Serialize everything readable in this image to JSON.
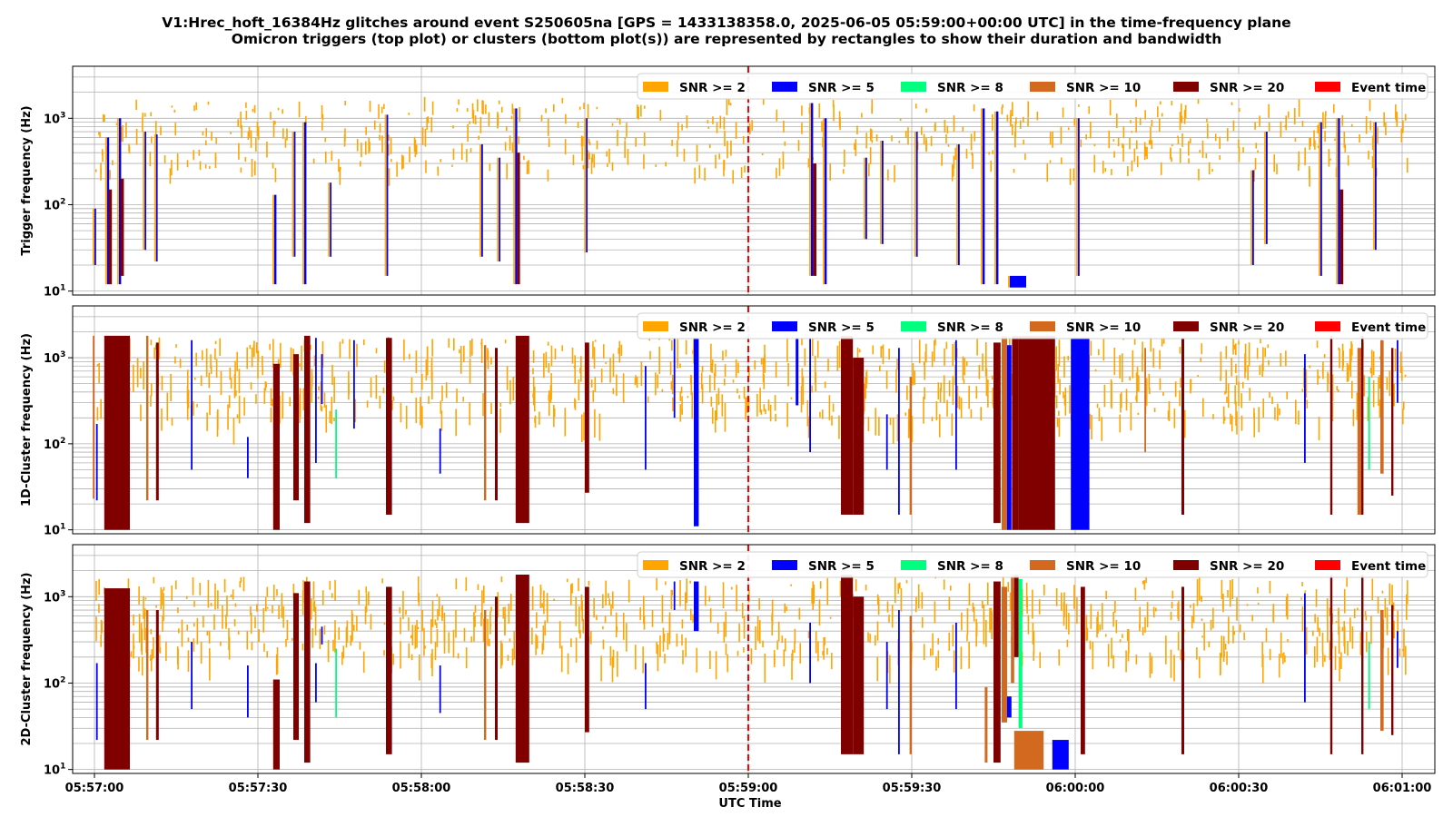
{
  "title": {
    "line1": "V1:Hrec_hoft_16384Hz glitches around event S250605na [GPS = 1433138358.0, 2025-06-05 05:59:00+00:00 UTC] in the time-frequency plane",
    "line2": "Omicron triggers (top plot) or clusters (bottom plot(s)) are represented by rectangles to show their duration and bandwidth"
  },
  "xlabel": "UTC Time",
  "xticks": [
    "05:57:00",
    "05:57:30",
    "05:58:00",
    "05:58:30",
    "05:59:00",
    "05:59:30",
    "06:00:00",
    "06:00:30",
    "06:01:00"
  ],
  "legend": [
    {
      "label": "SNR >= 2",
      "color": "#ffa500"
    },
    {
      "label": "SNR >= 5",
      "color": "#0000ff"
    },
    {
      "label": "SNR >= 8",
      "color": "#00ff7f"
    },
    {
      "label": "SNR >= 10",
      "color": "#d2691e"
    },
    {
      "label": "SNR >= 20",
      "color": "#800000"
    },
    {
      "label": "Event time",
      "color": "#ff0000"
    }
  ],
  "event_line_color": "#ff0000",
  "chart_data": [
    {
      "type": "bar",
      "panel": "triggers",
      "ylabel": "Trigger frequency (Hz)",
      "yscale": "log",
      "ylim": [
        9,
        4000
      ],
      "yticks": [
        "10^1",
        "10^2",
        "10^3"
      ],
      "xlim_seconds_from_05_57_00": [
        -4,
        246
      ],
      "event_time": "05:59:00",
      "grid": true,
      "legend_position": "top-right",
      "rects": [
        {
          "t0": 0.0,
          "t1": 0.3,
          "f0": 20,
          "f1": 90,
          "snr": 5
        },
        {
          "t0": 2.3,
          "t1": 2.7,
          "f0": 12,
          "f1": 600,
          "snr": 5
        },
        {
          "t0": 2.6,
          "t1": 3.2,
          "f0": 12,
          "f1": 150,
          "snr": 20
        },
        {
          "t0": 4.5,
          "t1": 4.9,
          "f0": 12,
          "f1": 1000,
          "snr": 5
        },
        {
          "t0": 4.8,
          "t1": 5.4,
          "f0": 15,
          "f1": 200,
          "snr": 20
        },
        {
          "t0": 9.2,
          "t1": 9.5,
          "f0": 30,
          "f1": 700,
          "snr": 5
        },
        {
          "t0": 11.3,
          "t1": 11.6,
          "f0": 22,
          "f1": 650,
          "snr": 5
        },
        {
          "t0": 33.0,
          "t1": 33.4,
          "f0": 12,
          "f1": 130,
          "snr": 5
        },
        {
          "t0": 36.6,
          "t1": 36.9,
          "f0": 25,
          "f1": 700,
          "snr": 5
        },
        {
          "t0": 38.5,
          "t1": 38.9,
          "f0": 12,
          "f1": 900,
          "snr": 5
        },
        {
          "t0": 43.2,
          "t1": 43.5,
          "f0": 25,
          "f1": 180,
          "snr": 5
        },
        {
          "t0": 53.6,
          "t1": 53.9,
          "f0": 15,
          "f1": 1100,
          "snr": 5
        },
        {
          "t0": 71.0,
          "t1": 71.3,
          "f0": 25,
          "f1": 500,
          "snr": 5
        },
        {
          "t0": 74.2,
          "t1": 74.5,
          "f0": 22,
          "f1": 350,
          "snr": 5
        },
        {
          "t0": 77.2,
          "t1": 77.6,
          "f0": 12,
          "f1": 1300,
          "snr": 5
        },
        {
          "t0": 77.6,
          "t1": 78.1,
          "f0": 12,
          "f1": 400,
          "snr": 20
        },
        {
          "t0": 90.2,
          "t1": 90.5,
          "f0": 28,
          "f1": 1000,
          "snr": 5
        },
        {
          "t0": 131.5,
          "t1": 131.9,
          "f0": 15,
          "f1": 1500,
          "snr": 5
        },
        {
          "t0": 131.9,
          "t1": 132.5,
          "f0": 15,
          "f1": 300,
          "snr": 20
        },
        {
          "t0": 134.0,
          "t1": 134.4,
          "f0": 12,
          "f1": 1000,
          "snr": 5
        },
        {
          "t0": 141.5,
          "t1": 141.8,
          "f0": 40,
          "f1": 350,
          "snr": 5
        },
        {
          "t0": 144.5,
          "t1": 144.8,
          "f0": 35,
          "f1": 550,
          "snr": 5
        },
        {
          "t0": 150.8,
          "t1": 151.1,
          "f0": 25,
          "f1": 700,
          "snr": 5
        },
        {
          "t0": 158.5,
          "t1": 158.8,
          "f0": 20,
          "f1": 500,
          "snr": 5
        },
        {
          "t0": 163.0,
          "t1": 163.4,
          "f0": 12,
          "f1": 1300,
          "snr": 5
        },
        {
          "t0": 165.5,
          "t1": 165.9,
          "f0": 12,
          "f1": 1200,
          "snr": 5
        },
        {
          "t0": 168.0,
          "t1": 171.0,
          "f0": 11,
          "f1": 15,
          "snr": 5
        },
        {
          "t0": 180.5,
          "t1": 180.8,
          "f0": 15,
          "f1": 1000,
          "snr": 5
        },
        {
          "t0": 212.5,
          "t1": 212.8,
          "f0": 20,
          "f1": 250,
          "snr": 5
        },
        {
          "t0": 215.0,
          "t1": 215.3,
          "f0": 35,
          "f1": 700,
          "snr": 5
        },
        {
          "t0": 225.0,
          "t1": 225.3,
          "f0": 15,
          "f1": 900,
          "snr": 5
        },
        {
          "t0": 228.2,
          "t1": 228.6,
          "f0": 12,
          "f1": 1000,
          "snr": 5
        },
        {
          "t0": 228.6,
          "t1": 229.2,
          "f0": 12,
          "f1": 150,
          "snr": 20
        },
        {
          "t0": 235.0,
          "t1": 235.3,
          "f0": 30,
          "f1": 900,
          "snr": 5
        }
      ]
    },
    {
      "type": "bar",
      "panel": "1d-clusters",
      "ylabel": "1D-Cluster frequency (Hz)",
      "yscale": "log",
      "ylim": [
        9,
        4000
      ],
      "yticks": [
        "10^1",
        "10^2",
        "10^3"
      ],
      "event_time": "05:59:00",
      "grid": true,
      "legend_position": "top-right",
      "rects": [
        {
          "t0": -0.3,
          "t1": 0.0,
          "f0": 23,
          "f1": 1800,
          "snr": 10
        },
        {
          "t0": 0.3,
          "t1": 0.6,
          "f0": 22,
          "f1": 170,
          "snr": 5
        },
        {
          "t0": 1.8,
          "t1": 6.5,
          "f0": 10,
          "f1": 1800,
          "snr": 20
        },
        {
          "t0": 9.5,
          "t1": 9.9,
          "f0": 22,
          "f1": 1800,
          "snr": 10
        },
        {
          "t0": 11.3,
          "t1": 11.8,
          "f0": 22,
          "f1": 1500,
          "snr": 20
        },
        {
          "t0": 17.7,
          "t1": 18.0,
          "f0": 50,
          "f1": 1600,
          "snr": 5
        },
        {
          "t0": 28.0,
          "t1": 28.3,
          "f0": 40,
          "f1": 120,
          "snr": 5
        },
        {
          "t0": 32.8,
          "t1": 34.0,
          "f0": 10,
          "f1": 850,
          "snr": 20
        },
        {
          "t0": 36.5,
          "t1": 37.5,
          "f0": 22,
          "f1": 1100,
          "snr": 20
        },
        {
          "t0": 38.5,
          "t1": 39.6,
          "f0": 12,
          "f1": 1800,
          "snr": 20
        },
        {
          "t0": 40.5,
          "t1": 40.8,
          "f0": 60,
          "f1": 1700,
          "snr": 5
        },
        {
          "t0": 41.6,
          "t1": 41.9,
          "f0": 290,
          "f1": 1100,
          "snr": 5
        },
        {
          "t0": 44.2,
          "t1": 44.5,
          "f0": 40,
          "f1": 250,
          "snr": 8
        },
        {
          "t0": 47.5,
          "t1": 47.8,
          "f0": 150,
          "f1": 1600,
          "snr": 5
        },
        {
          "t0": 53.5,
          "t1": 54.6,
          "f0": 15,
          "f1": 1700,
          "snr": 20
        },
        {
          "t0": 63.3,
          "t1": 63.6,
          "f0": 45,
          "f1": 150,
          "snr": 5
        },
        {
          "t0": 71.5,
          "t1": 71.9,
          "f0": 22,
          "f1": 1400,
          "snr": 10
        },
        {
          "t0": 73.5,
          "t1": 74.0,
          "f0": 22,
          "f1": 1300,
          "snr": 20
        },
        {
          "t0": 77.3,
          "t1": 79.8,
          "f0": 12,
          "f1": 1800,
          "snr": 20
        },
        {
          "t0": 90.0,
          "t1": 90.8,
          "f0": 27,
          "f1": 1500,
          "snr": 20
        },
        {
          "t0": 101.0,
          "t1": 101.3,
          "f0": 50,
          "f1": 800,
          "snr": 5
        },
        {
          "t0": 106.3,
          "t1": 106.6,
          "f0": 200,
          "f1": 1700,
          "snr": 5
        },
        {
          "t0": 110.0,
          "t1": 110.9,
          "f0": 11,
          "f1": 1700,
          "snr": 5
        },
        {
          "t0": 128.7,
          "t1": 129.2,
          "f0": 280,
          "f1": 1700,
          "snr": 5
        },
        {
          "t0": 131.2,
          "t1": 131.5,
          "f0": 80,
          "f1": 1700,
          "snr": 5
        },
        {
          "t0": 137.0,
          "t1": 139.2,
          "f0": 15,
          "f1": 1800,
          "snr": 20
        },
        {
          "t0": 139.2,
          "t1": 141.2,
          "f0": 15,
          "f1": 1000,
          "snr": 20
        },
        {
          "t0": 145.3,
          "t1": 145.6,
          "f0": 50,
          "f1": 220,
          "snr": 5
        },
        {
          "t0": 147.5,
          "t1": 147.8,
          "f0": 15,
          "f1": 1300,
          "snr": 5
        },
        {
          "t0": 149.6,
          "t1": 150.0,
          "f0": 15,
          "f1": 600,
          "snr": 10
        },
        {
          "t0": 158.0,
          "t1": 158.3,
          "f0": 50,
          "f1": 1600,
          "snr": 5
        },
        {
          "t0": 165.0,
          "t1": 166.3,
          "f0": 12,
          "f1": 1500,
          "snr": 20
        },
        {
          "t0": 166.5,
          "t1": 167.5,
          "f0": 10,
          "f1": 1800,
          "snr": 10
        },
        {
          "t0": 167.5,
          "t1": 168.3,
          "f0": 10,
          "f1": 1400,
          "snr": 5
        },
        {
          "t0": 168.4,
          "t1": 169.6,
          "f0": 10,
          "f1": 1800,
          "snr": 20
        },
        {
          "t0": 169.6,
          "t1": 176.3,
          "f0": 10,
          "f1": 1800,
          "snr": 20
        },
        {
          "t0": 179.2,
          "t1": 182.6,
          "f0": 10,
          "f1": 1700,
          "snr": 5
        },
        {
          "t0": 192.7,
          "t1": 193.0,
          "f0": 80,
          "f1": 1300,
          "snr": 10
        },
        {
          "t0": 199.5,
          "t1": 200.0,
          "f0": 15,
          "f1": 1700,
          "snr": 20
        },
        {
          "t0": 231.8,
          "t1": 232.6,
          "f0": 15,
          "f1": 1300,
          "snr": 10
        },
        {
          "t0": 222.0,
          "t1": 222.3,
          "f0": 60,
          "f1": 1100,
          "snr": 5
        },
        {
          "t0": 226.8,
          "t1": 227.2,
          "f0": 15,
          "f1": 1800,
          "snr": 20
        },
        {
          "t0": 232.5,
          "t1": 232.9,
          "f0": 15,
          "f1": 1800,
          "snr": 20
        },
        {
          "t0": 233.8,
          "t1": 234.1,
          "f0": 50,
          "f1": 600,
          "snr": 8
        },
        {
          "t0": 236.0,
          "t1": 236.6,
          "f0": 45,
          "f1": 1600,
          "snr": 10
        },
        {
          "t0": 238.0,
          "t1": 238.4,
          "f0": 25,
          "f1": 1300,
          "snr": 20
        },
        {
          "t0": 239.0,
          "t1": 239.3,
          "f0": 300,
          "f1": 1600,
          "snr": 5
        }
      ]
    },
    {
      "type": "bar",
      "panel": "2d-clusters",
      "ylabel": "2D-Cluster frequency (Hz)",
      "yscale": "log",
      "ylim": [
        9,
        4000
      ],
      "yticks": [
        "10^1",
        "10^2",
        "10^3"
      ],
      "event_time": "05:59:00",
      "grid": true,
      "legend_position": "top-right",
      "rects": [
        {
          "t0": 0.3,
          "t1": 0.6,
          "f0": 22,
          "f1": 170,
          "snr": 5
        },
        {
          "t0": 1.8,
          "t1": 6.5,
          "f0": 10,
          "f1": 1250,
          "snr": 20
        },
        {
          "t0": 9.5,
          "t1": 9.9,
          "f0": 22,
          "f1": 700,
          "snr": 10
        },
        {
          "t0": 11.3,
          "t1": 11.8,
          "f0": 22,
          "f1": 700,
          "snr": 20
        },
        {
          "t0": 17.7,
          "t1": 18.0,
          "f0": 50,
          "f1": 300,
          "snr": 5
        },
        {
          "t0": 28.0,
          "t1": 28.3,
          "f0": 40,
          "f1": 160,
          "snr": 5
        },
        {
          "t0": 32.8,
          "t1": 34.0,
          "f0": 10,
          "f1": 110,
          "snr": 20
        },
        {
          "t0": 36.5,
          "t1": 37.5,
          "f0": 22,
          "f1": 1100,
          "snr": 20
        },
        {
          "t0": 38.5,
          "t1": 39.6,
          "f0": 12,
          "f1": 1500,
          "snr": 20
        },
        {
          "t0": 40.5,
          "t1": 40.8,
          "f0": 60,
          "f1": 170,
          "snr": 5
        },
        {
          "t0": 41.6,
          "t1": 41.9,
          "f0": 280,
          "f1": 450,
          "snr": 5
        },
        {
          "t0": 44.2,
          "t1": 44.5,
          "f0": 40,
          "f1": 250,
          "snr": 8
        },
        {
          "t0": 53.5,
          "t1": 54.6,
          "f0": 15,
          "f1": 1300,
          "snr": 20
        },
        {
          "t0": 63.3,
          "t1": 63.6,
          "f0": 45,
          "f1": 160,
          "snr": 5
        },
        {
          "t0": 71.5,
          "t1": 71.9,
          "f0": 22,
          "f1": 700,
          "snr": 10
        },
        {
          "t0": 73.5,
          "t1": 74.0,
          "f0": 22,
          "f1": 1000,
          "snr": 20
        },
        {
          "t0": 77.3,
          "t1": 79.8,
          "f0": 12,
          "f1": 1800,
          "snr": 20
        },
        {
          "t0": 90.0,
          "t1": 90.8,
          "f0": 27,
          "f1": 1300,
          "snr": 20
        },
        {
          "t0": 101.0,
          "t1": 101.3,
          "f0": 50,
          "f1": 170,
          "snr": 5
        },
        {
          "t0": 106.3,
          "t1": 106.6,
          "f0": 700,
          "f1": 1500,
          "snr": 5
        },
        {
          "t0": 110.0,
          "t1": 110.9,
          "f0": 400,
          "f1": 1500,
          "snr": 5
        },
        {
          "t0": 131.2,
          "t1": 131.5,
          "f0": 100,
          "f1": 500,
          "snr": 5
        },
        {
          "t0": 137.0,
          "t1": 139.2,
          "f0": 15,
          "f1": 1800,
          "snr": 20
        },
        {
          "t0": 139.2,
          "t1": 141.2,
          "f0": 15,
          "f1": 1000,
          "snr": 20
        },
        {
          "t0": 145.3,
          "t1": 145.6,
          "f0": 50,
          "f1": 300,
          "snr": 5
        },
        {
          "t0": 147.5,
          "t1": 147.8,
          "f0": 15,
          "f1": 700,
          "snr": 5
        },
        {
          "t0": 149.6,
          "t1": 150.0,
          "f0": 15,
          "f1": 600,
          "snr": 10
        },
        {
          "t0": 158.0,
          "t1": 158.3,
          "f0": 50,
          "f1": 500,
          "snr": 5
        },
        {
          "t0": 163.4,
          "t1": 163.9,
          "f0": 12,
          "f1": 90,
          "snr": 10
        },
        {
          "t0": 165.0,
          "t1": 166.3,
          "f0": 12,
          "f1": 1500,
          "snr": 20
        },
        {
          "t0": 166.5,
          "t1": 167.5,
          "f0": 35,
          "f1": 1300,
          "snr": 10
        },
        {
          "t0": 167.5,
          "t1": 168.3,
          "f0": 40,
          "f1": 70,
          "snr": 5
        },
        {
          "t0": 168.2,
          "t1": 168.8,
          "f0": 100,
          "f1": 1800,
          "snr": 10
        },
        {
          "t0": 168.8,
          "t1": 169.6,
          "f0": 200,
          "f1": 1800,
          "snr": 20
        },
        {
          "t0": 169.6,
          "t1": 170.3,
          "f0": 30,
          "f1": 1600,
          "snr": 8
        },
        {
          "t0": 168.8,
          "t1": 174.2,
          "f0": 10,
          "f1": 28,
          "snr": 10
        },
        {
          "t0": 175.8,
          "t1": 178.8,
          "f0": 10,
          "f1": 22,
          "snr": 5
        },
        {
          "t0": 181.0,
          "t1": 181.8,
          "f0": 15,
          "f1": 1300,
          "snr": 20
        },
        {
          "t0": 199.5,
          "t1": 200.0,
          "f0": 15,
          "f1": 1300,
          "snr": 20
        },
        {
          "t0": 222.0,
          "t1": 222.3,
          "f0": 60,
          "f1": 1100,
          "snr": 5
        },
        {
          "t0": 226.8,
          "t1": 227.2,
          "f0": 15,
          "f1": 1800,
          "snr": 20
        },
        {
          "t0": 232.5,
          "t1": 232.9,
          "f0": 15,
          "f1": 1800,
          "snr": 20
        },
        {
          "t0": 233.8,
          "t1": 234.1,
          "f0": 50,
          "f1": 300,
          "snr": 8
        },
        {
          "t0": 236.0,
          "t1": 236.6,
          "f0": 28,
          "f1": 700,
          "snr": 10
        },
        {
          "t0": 238.0,
          "t1": 238.4,
          "f0": 25,
          "f1": 800,
          "snr": 20
        },
        {
          "t0": 239.0,
          "t1": 239.3,
          "f0": 150,
          "f1": 400,
          "snr": 5
        }
      ]
    }
  ]
}
